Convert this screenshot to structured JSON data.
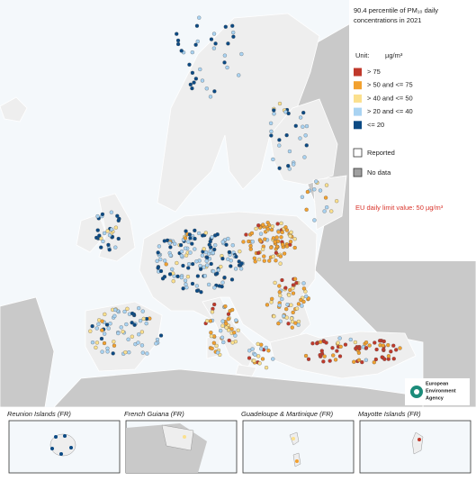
{
  "title_lines": [
    "90.4 percentile of PM₁₀ daily",
    "concentrations in 2021"
  ],
  "legend": {
    "unit_label": "Unit:",
    "unit": "µg/m³",
    "classes": [
      {
        "label": "> 75",
        "color": "#c0392b"
      },
      {
        "label": "> 50 and <= 75",
        "color": "#f2a12f"
      },
      {
        "label": "> 40 and <= 50",
        "color": "#fbe08e"
      },
      {
        "label": "> 20 and <= 40",
        "color": "#a9d3f2"
      },
      {
        "label": "<= 20",
        "color": "#0b4a84"
      }
    ],
    "reported": "Reported",
    "no_data": "No data"
  },
  "note": "EU daily limit value: 50 µg/m³",
  "agency": [
    "European",
    "Environment",
    "Agency"
  ],
  "insets": [
    "Reunion Islands (FR)",
    "French Guiana (FR)",
    "Guadeloupe & Martinique (FR)",
    "Mayotte Islands (FR)"
  ]
}
